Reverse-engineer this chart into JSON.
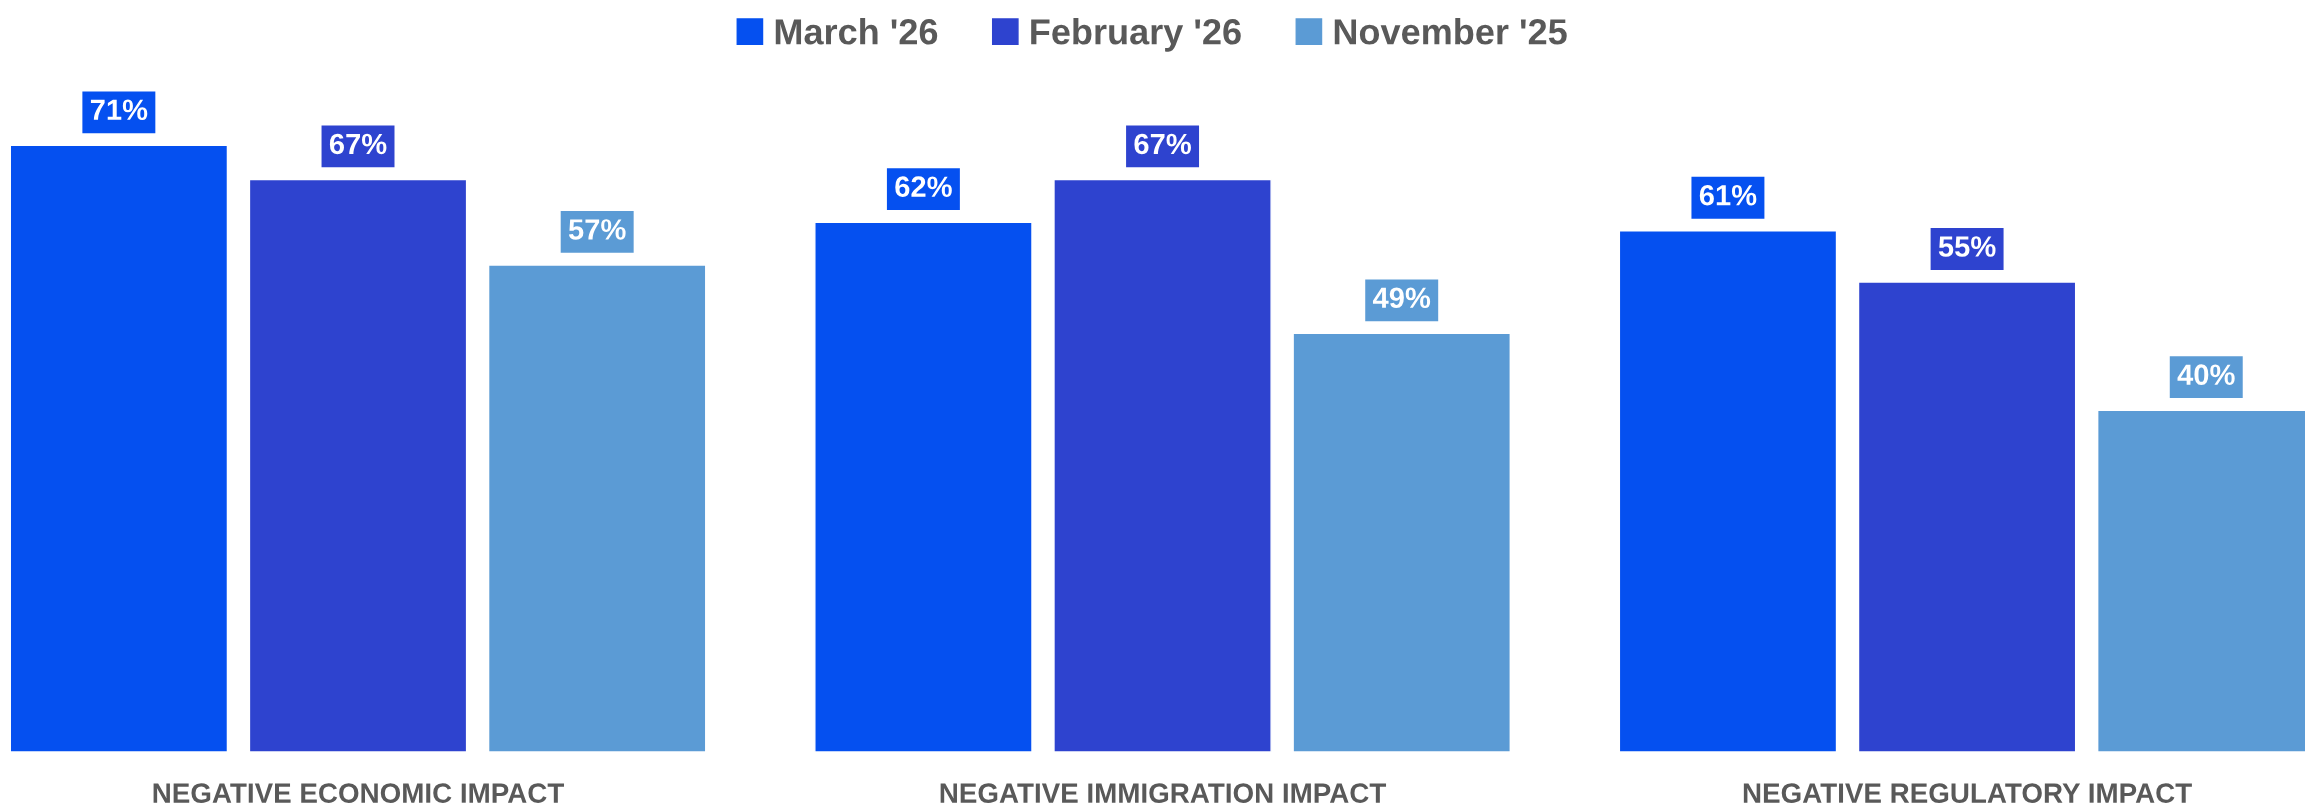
{
  "chart_data": {
    "type": "bar",
    "categories": [
      "NEGATIVE ECONOMIC IMPACT",
      "NEGATIVE IMMIGRATION IMPACT",
      "NEGATIVE REGULATORY IMPACT"
    ],
    "series": [
      {
        "name": "March '26",
        "color": "#0550f0",
        "values": [
          71,
          62,
          61
        ],
        "value_labels": [
          "71%",
          "62%",
          "61%"
        ]
      },
      {
        "name": "February '26",
        "color": "#2e43cf",
        "values": [
          67,
          67,
          55
        ],
        "value_labels": [
          "67%",
          "67%",
          "55%"
        ]
      },
      {
        "name": "November '25",
        "color": "#5b9bd5",
        "values": [
          57,
          49,
          40
        ],
        "value_labels": [
          "57%",
          "49%",
          "40%"
        ]
      }
    ],
    "legend": "top"
  }
}
